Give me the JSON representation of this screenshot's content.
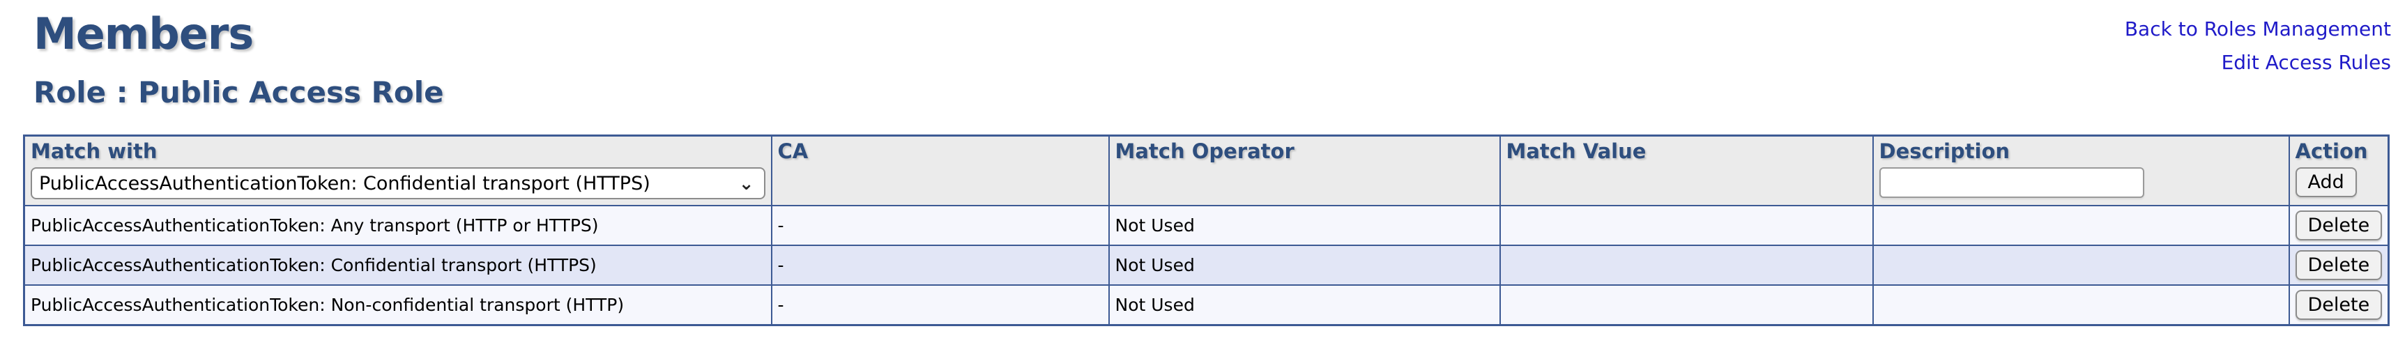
{
  "page": {
    "title": "Members",
    "subtitle": "Role : Public Access Role"
  },
  "nav": {
    "back_link": "Back to Roles Management",
    "edit_rules_link": "Edit Access Rules"
  },
  "table": {
    "columns": {
      "match_with": "Match with",
      "ca": "CA",
      "match_operator": "Match Operator",
      "match_value": "Match Value",
      "description": "Description",
      "action": "Action"
    },
    "add_row": {
      "match_with_selected": "PublicAccessAuthenticationToken: Confidential transport (HTTPS)",
      "description_value": "",
      "add_button_label": "Add"
    },
    "rows": [
      {
        "match_with": "PublicAccessAuthenticationToken: Any transport (HTTP or HTTPS)",
        "ca": "-",
        "match_operator": "Not Used",
        "match_value": "",
        "description": "",
        "delete_button_label": "Delete"
      },
      {
        "match_with": "PublicAccessAuthenticationToken: Confidential transport (HTTPS)",
        "ca": "-",
        "match_operator": "Not Used",
        "match_value": "",
        "description": "",
        "delete_button_label": "Delete"
      },
      {
        "match_with": "PublicAccessAuthenticationToken: Non-confidential transport (HTTP)",
        "ca": "-",
        "match_operator": "Not Used",
        "match_value": "",
        "description": "",
        "delete_button_label": "Delete"
      }
    ]
  },
  "icons": {
    "select_chevron": "chevron-down-icon"
  },
  "colors": {
    "heading_navy": "#2e4e7e",
    "table_border_navy": "#3d5a94",
    "link_blue": "#1f1ac8",
    "header_row_bg": "#ebebeb",
    "row_odd_bg": "#f6f7fd",
    "row_even_bg": "#e2e6f6",
    "button_bg": "#f1f1f1"
  }
}
